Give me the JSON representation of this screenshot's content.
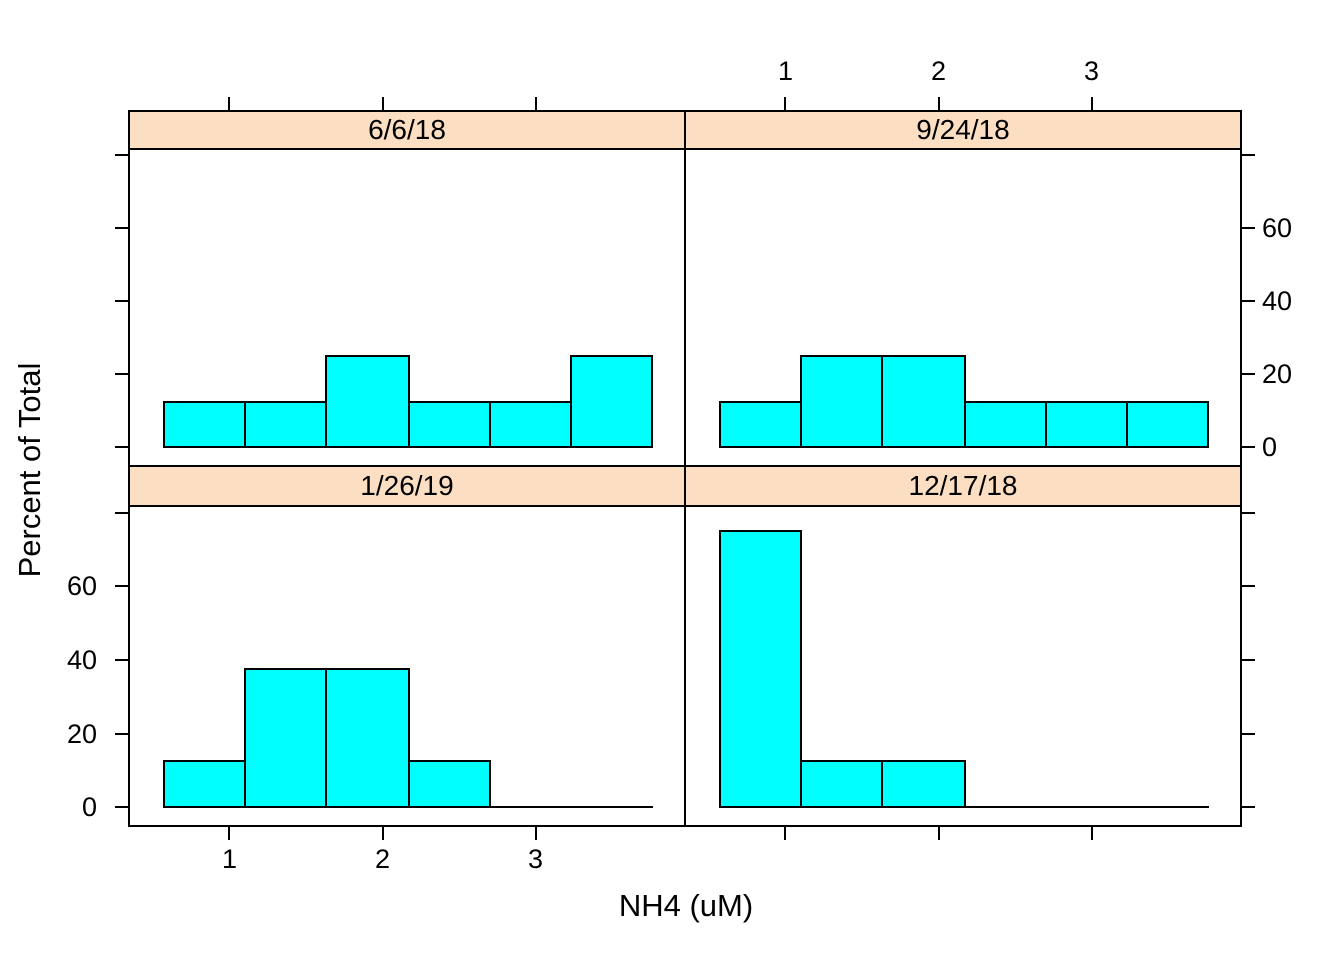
{
  "chart_data": {
    "type": "bar",
    "subtype": "trellis-histogram",
    "title": "",
    "xlabel": "NH4 (uM)",
    "ylabel": "Percent of Total",
    "xlim": [
      0.35,
      3.97
    ],
    "ylim": [
      -4.8,
      81.5
    ],
    "x_ticks": [
      1,
      2,
      3
    ],
    "y_ticks": [
      0,
      20,
      40,
      60,
      80
    ],
    "y_tick_labels": [
      0,
      20,
      40,
      60
    ],
    "bin_edges": [
      0.57,
      1.1,
      1.63,
      2.17,
      2.7,
      3.23,
      3.76
    ],
    "panels": [
      {
        "label": "6/6/18",
        "row": "top",
        "col": "left",
        "values": [
          12.5,
          12.5,
          25,
          12.5,
          12.5,
          25
        ]
      },
      {
        "label": "9/24/18",
        "row": "top",
        "col": "right",
        "values": [
          12.5,
          25,
          25,
          12.5,
          12.5,
          12.5
        ]
      },
      {
        "label": "1/26/19",
        "row": "bottom",
        "col": "left",
        "values": [
          12.5,
          37.5,
          37.5,
          12.5,
          0,
          0
        ]
      },
      {
        "label": "12/17/18",
        "row": "bottom",
        "col": "right",
        "values": [
          75,
          12.5,
          12.5,
          0,
          0,
          0
        ]
      }
    ],
    "legend": "none",
    "grid": "off",
    "colors": {
      "bar_fill": "#00FFFF",
      "bar_border": "#000000",
      "strip_fill": "#FCDFC3",
      "panel_border": "#000000",
      "text": "#000000",
      "background": "#FFFFFF"
    },
    "axis_label_alternation": {
      "x_labels_bottom_under_col": "left",
      "x_labels_top_over_col": "right",
      "y_labels_left_beside_row": "bottom",
      "y_labels_right_beside_row": "top"
    }
  }
}
